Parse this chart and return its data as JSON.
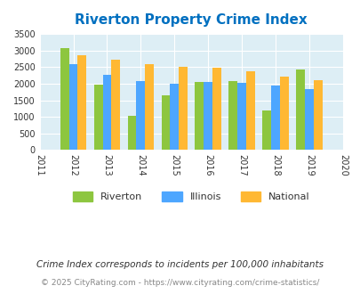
{
  "title": "Riverton Property Crime Index",
  "years": [
    2011,
    2012,
    2013,
    2014,
    2015,
    2016,
    2017,
    2018,
    2019,
    2020
  ],
  "bar_years": [
    2012,
    2013,
    2014,
    2015,
    2016,
    2017,
    2018,
    2019
  ],
  "riverton": [
    3080,
    1960,
    1020,
    1640,
    2050,
    2090,
    1190,
    2430
  ],
  "illinois": [
    2600,
    2280,
    2070,
    2000,
    2060,
    2020,
    1940,
    1840
  ],
  "national": [
    2850,
    2730,
    2600,
    2500,
    2480,
    2380,
    2210,
    2110
  ],
  "color_riverton": "#8dc63f",
  "color_illinois": "#4da6ff",
  "color_national": "#ffb833",
  "bg_color": "#ddeef5",
  "title_color": "#0070c0",
  "ylim": [
    0,
    3500
  ],
  "yticks": [
    0,
    500,
    1000,
    1500,
    2000,
    2500,
    3000,
    3500
  ],
  "legend_labels": [
    "Riverton",
    "Illinois",
    "National"
  ],
  "note1": "Crime Index corresponds to incidents per 100,000 inhabitants",
  "note2": "© 2025 CityRating.com - https://www.cityrating.com/crime-statistics/",
  "note1_color": "#333333",
  "note2_color": "#888888"
}
